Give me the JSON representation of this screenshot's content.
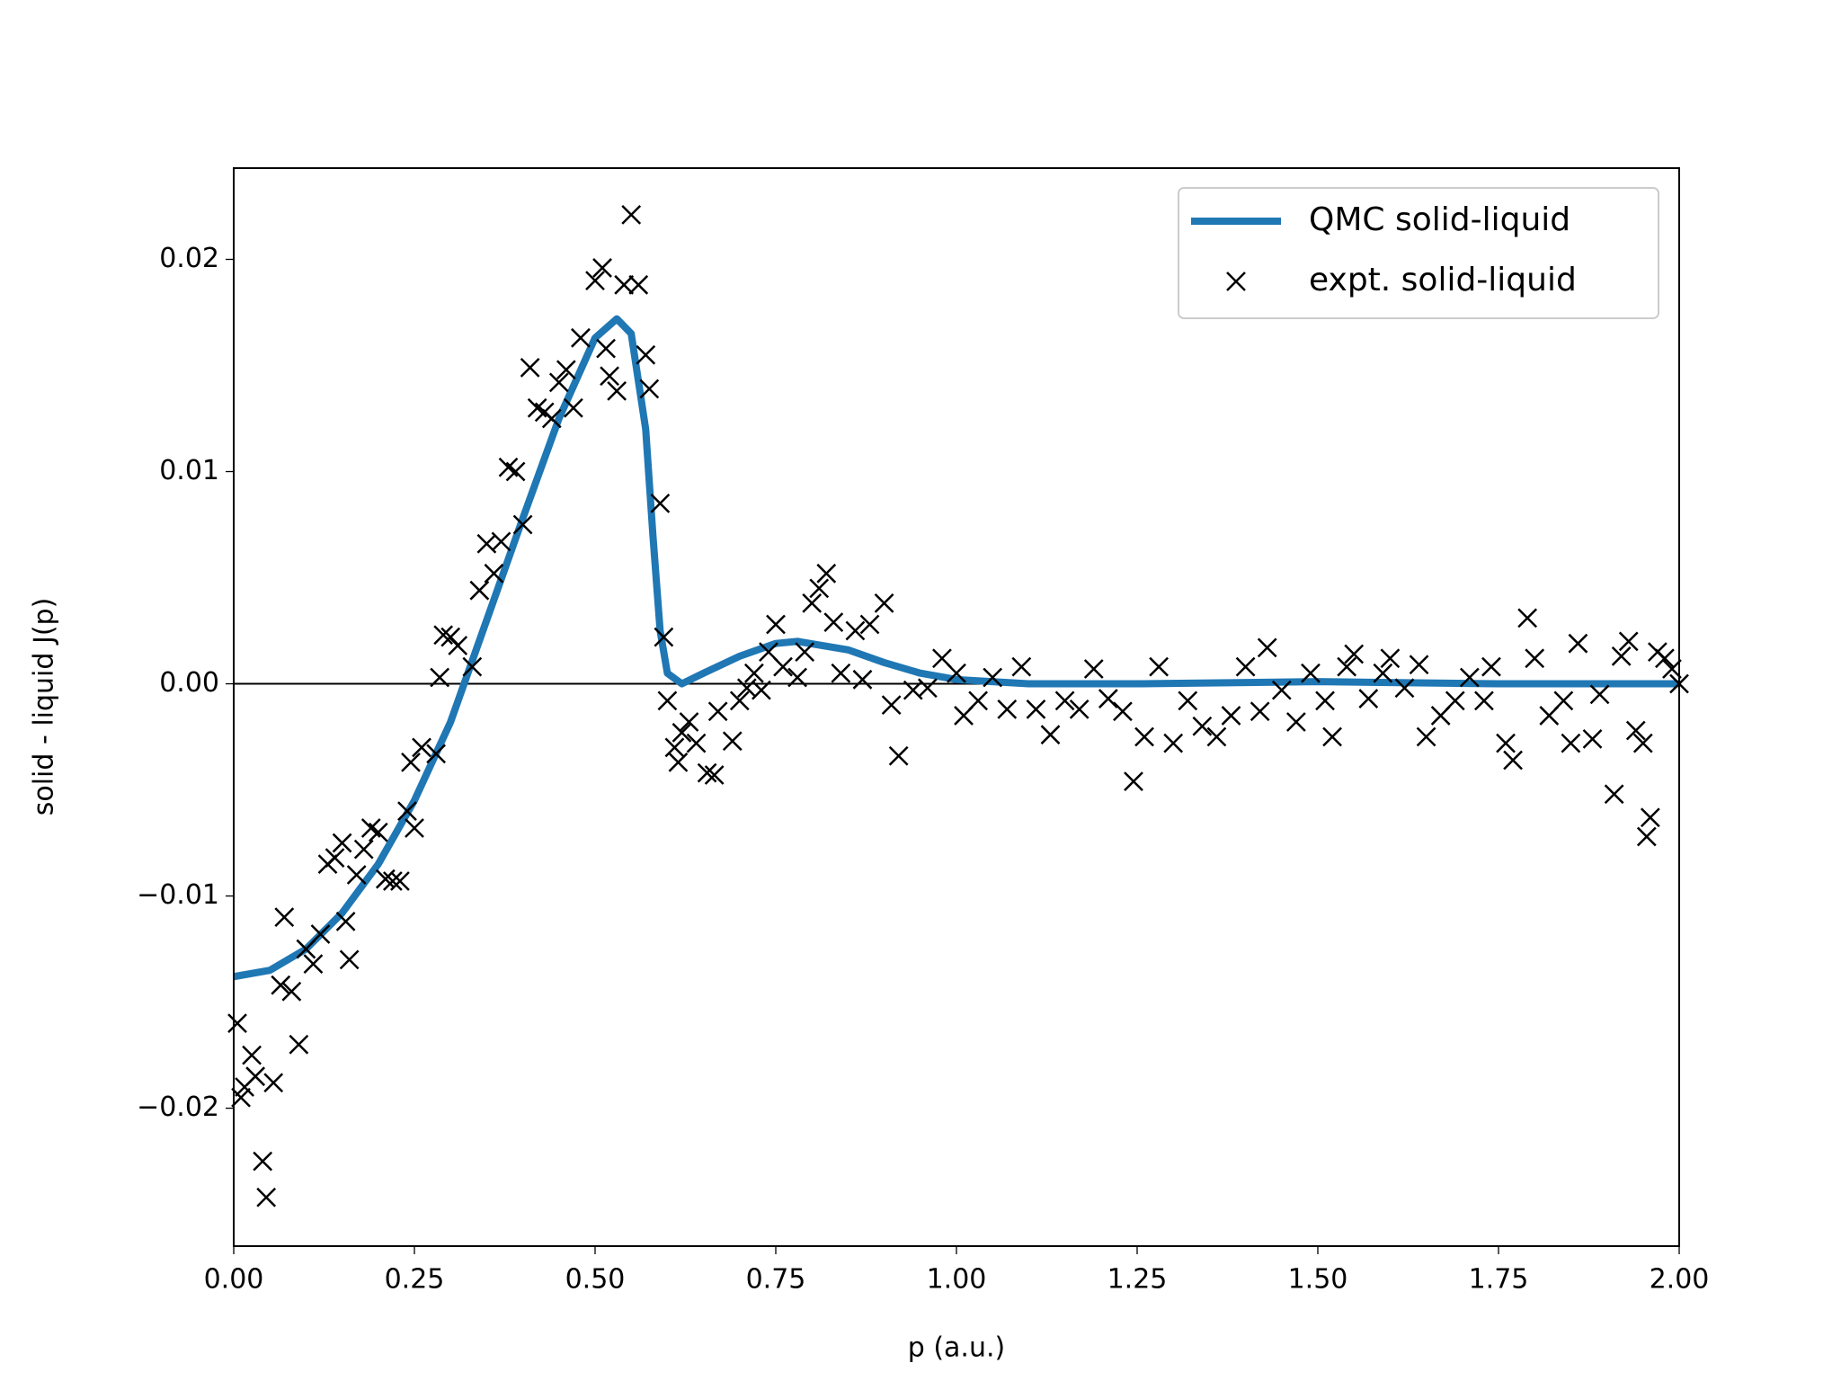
{
  "chart_data": {
    "type": "line",
    "xlabel": "p (a.u.)",
    "ylabel": "solid - liquid J(p)",
    "xlim": [
      0,
      2
    ],
    "ylim": [
      -0.0265,
      0.0243
    ],
    "xticks": [
      {
        "value": 0,
        "label": "0.00"
      },
      0.25,
      {
        "value": 0.5,
        "label": "0.50"
      },
      0.75,
      {
        "value": 1,
        "label": "1.00"
      },
      1.25,
      {
        "value": 1.5,
        "label": "1.50"
      },
      1.75,
      {
        "value": 2,
        "label": "2.00"
      }
    ],
    "yticks": [
      {
        "value": -0.02,
        "label": "−0.02"
      },
      {
        "value": -0.01,
        "label": "−0.01"
      },
      {
        "value": 0,
        "label": "0.00"
      },
      0.01,
      0.02
    ],
    "axhline": 0,
    "legend": "upper right",
    "grid": false,
    "series": [
      {
        "name": "QMC solid-liquid",
        "type": "line",
        "color": "#1f77b4",
        "x": [
          0,
          0.05,
          0.1,
          0.15,
          0.2,
          0.25,
          0.3,
          0.35,
          0.4,
          0.45,
          0.5,
          0.53,
          0.55,
          0.57,
          0.58,
          0.59,
          0.6,
          0.62,
          0.65,
          0.7,
          0.75,
          0.78,
          0.85,
          0.9,
          0.95,
          1.0,
          1.1,
          1.25,
          1.5,
          1.75,
          2.0
        ],
        "values": [
          -0.0138,
          -0.0135,
          -0.0125,
          -0.0108,
          -0.0085,
          -0.0055,
          -0.0018,
          0.003,
          0.0078,
          0.0125,
          0.0163,
          0.0172,
          0.0165,
          0.012,
          0.007,
          0.0025,
          0.0005,
          0.0,
          0.0005,
          0.0013,
          0.0019,
          0.002,
          0.0016,
          0.001,
          0.0005,
          0.0002,
          0.0,
          0.0,
          0.0001,
          0.0,
          0.0
        ]
      },
      {
        "name": "expt. solid-liquid",
        "type": "scatter",
        "marker": "x",
        "color": "#000000",
        "x": [
          0.005,
          0.01,
          0.015,
          0.025,
          0.03,
          0.04,
          0.045,
          0.055,
          0.065,
          0.07,
          0.08,
          0.09,
          0.1,
          0.11,
          0.12,
          0.13,
          0.14,
          0.15,
          0.155,
          0.16,
          0.17,
          0.18,
          0.19,
          0.2,
          0.21,
          0.22,
          0.23,
          0.24,
          0.245,
          0.25,
          0.26,
          0.28,
          0.285,
          0.29,
          0.3,
          0.31,
          0.33,
          0.34,
          0.35,
          0.36,
          0.37,
          0.38,
          0.39,
          0.4,
          0.41,
          0.42,
          0.43,
          0.44,
          0.45,
          0.46,
          0.47,
          0.48,
          0.5,
          0.51,
          0.515,
          0.52,
          0.53,
          0.54,
          0.55,
          0.56,
          0.57,
          0.575,
          0.59,
          0.595,
          0.6,
          0.61,
          0.615,
          0.62,
          0.63,
          0.64,
          0.655,
          0.665,
          0.67,
          0.69,
          0.7,
          0.71,
          0.72,
          0.73,
          0.74,
          0.75,
          0.76,
          0.78,
          0.79,
          0.8,
          0.81,
          0.82,
          0.83,
          0.84,
          0.86,
          0.87,
          0.88,
          0.9,
          0.91,
          0.92,
          0.94,
          0.96,
          0.98,
          1.0,
          1.01,
          1.03,
          1.05,
          1.07,
          1.09,
          1.11,
          1.13,
          1.15,
          1.17,
          1.19,
          1.21,
          1.23,
          1.245,
          1.26,
          1.28,
          1.3,
          1.32,
          1.34,
          1.36,
          1.38,
          1.4,
          1.42,
          1.43,
          1.45,
          1.47,
          1.49,
          1.51,
          1.52,
          1.54,
          1.55,
          1.57,
          1.59,
          1.6,
          1.62,
          1.64,
          1.65,
          1.67,
          1.69,
          1.71,
          1.73,
          1.74,
          1.76,
          1.77,
          1.79,
          1.8,
          1.82,
          1.84,
          1.85,
          1.86,
          1.88,
          1.89,
          1.91,
          1.92,
          1.93,
          1.94,
          1.95,
          1.955,
          1.96,
          1.97,
          1.98,
          1.99,
          2.0
        ],
        "values": [
          -0.016,
          -0.0195,
          -0.019,
          -0.0175,
          -0.0185,
          -0.0225,
          -0.0242,
          -0.0188,
          -0.0142,
          -0.011,
          -0.0145,
          -0.017,
          -0.0125,
          -0.0132,
          -0.0118,
          -0.0085,
          -0.0082,
          -0.0075,
          -0.0112,
          -0.013,
          -0.009,
          -0.0078,
          -0.0068,
          -0.007,
          -0.0092,
          -0.0093,
          -0.0093,
          -0.006,
          -0.0037,
          -0.0068,
          -0.003,
          -0.0033,
          0.0003,
          0.0023,
          0.0022,
          0.0018,
          0.0008,
          0.0044,
          0.0066,
          0.0052,
          0.0067,
          0.0102,
          0.01,
          0.0075,
          0.0149,
          0.013,
          0.0128,
          0.0125,
          0.0142,
          0.0148,
          0.013,
          0.0163,
          0.019,
          0.0196,
          0.0158,
          0.0145,
          0.0138,
          0.0188,
          0.0221,
          0.0188,
          0.0155,
          0.0139,
          0.0085,
          0.0022,
          -0.0008,
          -0.003,
          -0.0037,
          -0.0023,
          -0.0018,
          -0.0028,
          -0.0042,
          -0.0043,
          -0.0013,
          -0.0027,
          -0.0008,
          -0.0002,
          0.0005,
          -0.0003,
          0.0015,
          0.0028,
          0.0008,
          0.0003,
          0.0015,
          0.0038,
          0.0045,
          0.0052,
          0.0029,
          0.0005,
          0.0025,
          0.0002,
          0.0028,
          0.0038,
          -0.001,
          -0.0034,
          -0.0003,
          -0.0002,
          0.0012,
          0.0005,
          -0.0015,
          -0.0008,
          0.0003,
          -0.0012,
          0.0008,
          -0.0012,
          -0.0024,
          -0.0008,
          -0.0012,
          0.0007,
          -0.0007,
          -0.0013,
          -0.0046,
          -0.0025,
          0.0008,
          -0.0028,
          -0.0008,
          -0.002,
          -0.0025,
          -0.0015,
          0.0008,
          -0.0013,
          0.0017,
          -0.0003,
          -0.0018,
          0.0005,
          -0.0008,
          -0.0025,
          0.0008,
          0.0014,
          -0.0007,
          0.0005,
          0.0012,
          -0.0002,
          0.0009,
          -0.0025,
          -0.0015,
          -0.0008,
          0.0003,
          -0.0008,
          0.0008,
          -0.0028,
          -0.0036,
          0.0031,
          0.0012,
          -0.0015,
          -0.0008,
          -0.0028,
          0.0019,
          -0.0026,
          -0.0005,
          -0.0052,
          0.0013,
          0.002,
          -0.0022,
          -0.0028,
          -0.0072,
          -0.0063,
          0.0015,
          0.0012,
          0.0007,
          0.0
        ]
      }
    ]
  }
}
